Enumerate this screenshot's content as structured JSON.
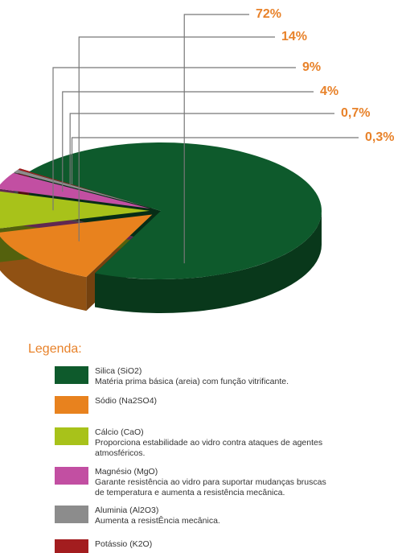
{
  "chart_data": {
    "type": "pie3d",
    "values": [
      72,
      14,
      9,
      4,
      0.7,
      0.3
    ],
    "value_labels": [
      "72%",
      "14%",
      "9%",
      "4%",
      "0,7%",
      "0,3%"
    ],
    "series": [
      {
        "name": "Silica (SiO2)",
        "color": "#0e5a2c",
        "description": "Matéria prima básica (areia) com função vitrificante."
      },
      {
        "name": "Sódio (Na2SO4)",
        "color": "#e8821e"
      },
      {
        "name": "Cálcio (CaO)",
        "color": "#a8c21a",
        "description": "Proporciona estabilidade ao vidro contra ataques de agentes atmosféricos."
      },
      {
        "name": "Magnésio (MgO)",
        "color": "#c24fa2",
        "description": "Garante resistência ao vidro para suportar mudanças bruscas de temperatura e aumenta a resistência mecânica."
      },
      {
        "name": "Aluminia (Al2O3)",
        "color": "#8c8c8c",
        "description": "Aumenta a resistÊncia mecânica."
      },
      {
        "name": "Potássio (K2O)",
        "color": "#a31d1f"
      }
    ],
    "legend_title": "Legenda:",
    "label_color": "#e8822a"
  }
}
